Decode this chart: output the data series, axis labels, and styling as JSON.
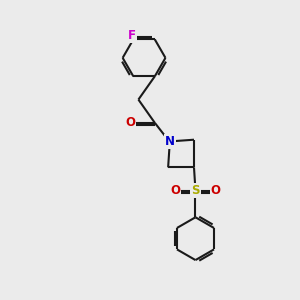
{
  "bg_color": "#ebebeb",
  "bond_color": "#1a1a1a",
  "bond_width": 1.5,
  "F_color": "#cc00cc",
  "O_color": "#cc0000",
  "N_color": "#0000cc",
  "S_color": "#aaaa00",
  "figsize": [
    3.0,
    3.0
  ],
  "dpi": 100,
  "xlim": [
    0,
    10
  ],
  "ylim": [
    0,
    10
  ]
}
